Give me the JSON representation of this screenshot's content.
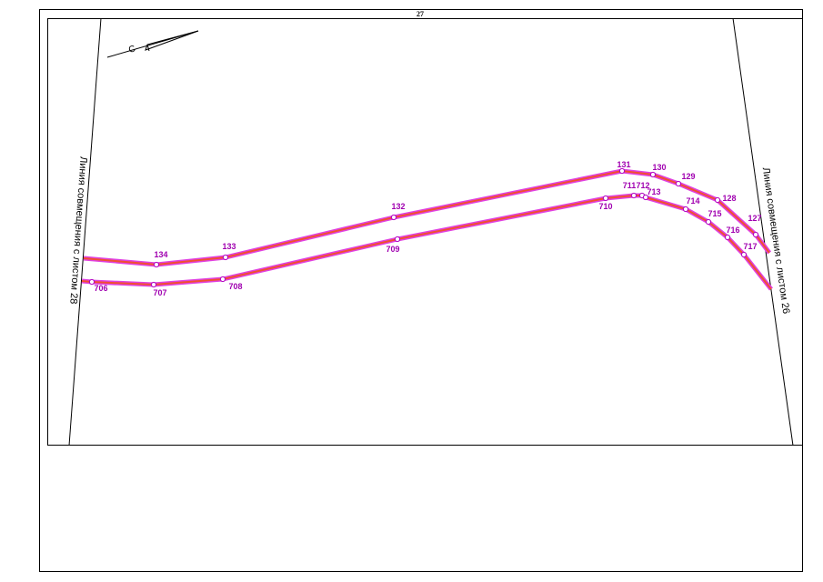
{
  "sheet_number": "27",
  "north_label": "С",
  "left_label": "Линия совмещения с листом 28",
  "right_label": "Линия совмещения с листом 26",
  "upper_points": [
    "134",
    "133",
    "132",
    "131",
    "130",
    "129",
    "128",
    "127"
  ],
  "lower_points": [
    "706",
    "707",
    "708",
    "709",
    "710",
    "711",
    "712",
    "713",
    "714",
    "715",
    "716",
    "717"
  ]
}
